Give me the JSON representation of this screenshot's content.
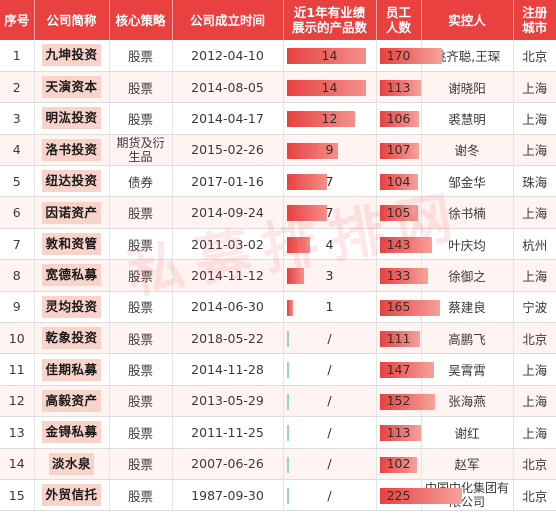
{
  "headers": {
    "no": "序号",
    "short_name": "公司简称",
    "strategy": "核心策略",
    "founded": "公司成立时间",
    "products_l1": "近1年有业绩",
    "products_l2": "展示的产品数",
    "staff_l1": "员工",
    "staff_l2": "人数",
    "controller": "实控人",
    "city_l1": "注册",
    "city_l2": "城市"
  },
  "rows": [
    {
      "no": "1",
      "name": "九坤投资",
      "strategy": "股票",
      "founded": "2012-04-10",
      "products": "14",
      "products_value": 14,
      "staff": "170",
      "staff_value": 170,
      "controller": "姚齐聪,王琛",
      "city": "北京"
    },
    {
      "no": "2",
      "name": "天演资本",
      "strategy": "股票",
      "founded": "2014-08-05",
      "products": "14",
      "products_value": 14,
      "staff": "113",
      "staff_value": 113,
      "controller": "谢晓阳",
      "city": "上海"
    },
    {
      "no": "3",
      "name": "明汯投资",
      "strategy": "股票",
      "founded": "2014-04-17",
      "products": "12",
      "products_value": 12,
      "staff": "106",
      "staff_value": 106,
      "controller": "裘慧明",
      "city": "上海"
    },
    {
      "no": "4",
      "name": "洛书投资",
      "strategy": "期货及衍生品",
      "founded": "2015-02-26",
      "products": "9",
      "products_value": 9,
      "staff": "107",
      "staff_value": 107,
      "controller": "谢冬",
      "city": "上海"
    },
    {
      "no": "5",
      "name": "纽达投资",
      "strategy": "债券",
      "founded": "2017-01-16",
      "products": "7",
      "products_value": 7,
      "staff": "104",
      "staff_value": 104,
      "controller": "邹金华",
      "city": "珠海"
    },
    {
      "no": "6",
      "name": "因诺资产",
      "strategy": "股票",
      "founded": "2014-09-24",
      "products": "7",
      "products_value": 7,
      "staff": "105",
      "staff_value": 105,
      "controller": "徐书楠",
      "city": "上海"
    },
    {
      "no": "7",
      "name": "敦和资管",
      "strategy": "股票",
      "founded": "2011-03-02",
      "products": "4",
      "products_value": 4,
      "staff": "143",
      "staff_value": 143,
      "controller": "叶庆均",
      "city": "杭州"
    },
    {
      "no": "8",
      "name": "宽德私募",
      "strategy": "股票",
      "founded": "2014-11-12",
      "products": "3",
      "products_value": 3,
      "staff": "133",
      "staff_value": 133,
      "controller": "徐御之",
      "city": "上海"
    },
    {
      "no": "9",
      "name": "灵均投资",
      "strategy": "股票",
      "founded": "2014-06-30",
      "products": "1",
      "products_value": 1,
      "staff": "165",
      "staff_value": 165,
      "controller": "蔡建良",
      "city": "宁波"
    },
    {
      "no": "10",
      "name": "乾象投资",
      "strategy": "股票",
      "founded": "2018-05-22",
      "products": "/",
      "products_value": 0,
      "staff": "111",
      "staff_value": 111,
      "controller": "高鹏飞",
      "city": "北京"
    },
    {
      "no": "11",
      "name": "佳期私募",
      "strategy": "股票",
      "founded": "2014-11-28",
      "products": "/",
      "products_value": 0,
      "staff": "147",
      "staff_value": 147,
      "controller": "吴霄霄",
      "city": "上海"
    },
    {
      "no": "12",
      "name": "高毅资产",
      "strategy": "股票",
      "founded": "2013-05-29",
      "products": "/",
      "products_value": 0,
      "staff": "152",
      "staff_value": 152,
      "controller": "张海燕",
      "city": "上海"
    },
    {
      "no": "13",
      "name": "金锝私募",
      "strategy": "股票",
      "founded": "2011-11-25",
      "products": "/",
      "products_value": 0,
      "staff": "113",
      "staff_value": 113,
      "controller": "谢红",
      "city": "上海"
    },
    {
      "no": "14",
      "name": "淡水泉",
      "strategy": "股票",
      "founded": "2007-06-26",
      "products": "/",
      "products_value": 0,
      "staff": "102",
      "staff_value": 102,
      "controller": "赵军",
      "city": "北京"
    },
    {
      "no": "15",
      "name": "外贸信托",
      "strategy": "股票",
      "founded": "1987-09-30",
      "products": "/",
      "products_value": 0,
      "staff": "225",
      "staff_value": 225,
      "controller": "中国中化集团有限公司",
      "city": "北京"
    }
  ],
  "scale": {
    "products_max": 14,
    "staff_max": 225
  },
  "watermark": "私募排排网",
  "colors": {
    "header": "#e8413f",
    "name_badge": "#f8d3c9",
    "bar": "#e8413f",
    "zero_bar": "#9bd8a7",
    "alt_row": "#fff4f2"
  }
}
